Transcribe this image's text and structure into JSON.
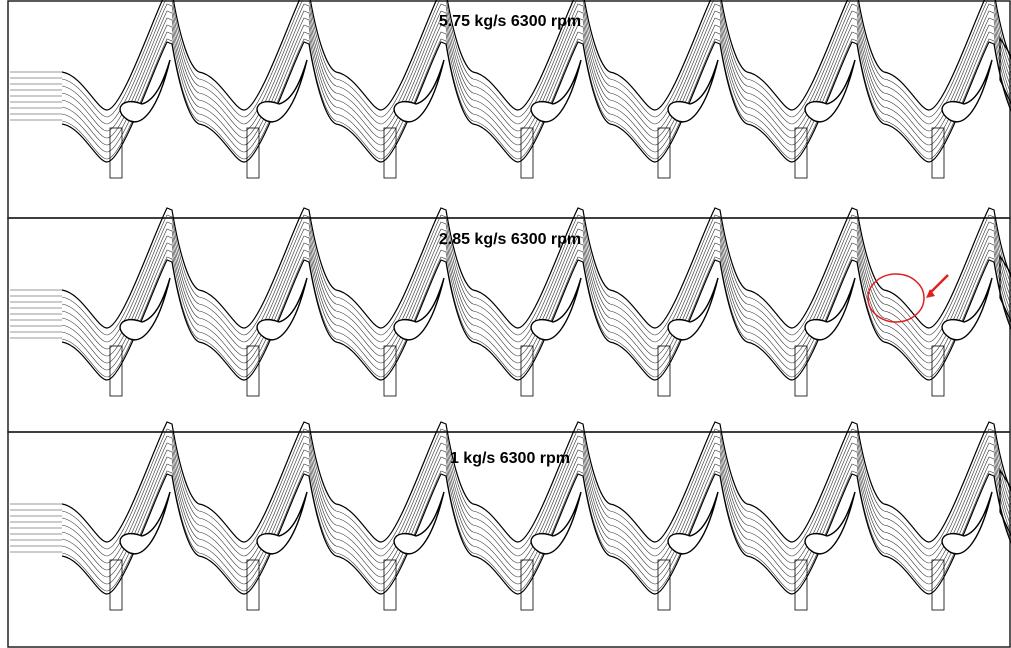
{
  "panels": [
    {
      "title": "5.75 kg/s 6300 rpm"
    },
    {
      "title": "2.85 kg/s 6300 rpm"
    },
    {
      "title": "1 kg/s 6300 rpm"
    }
  ]
}
